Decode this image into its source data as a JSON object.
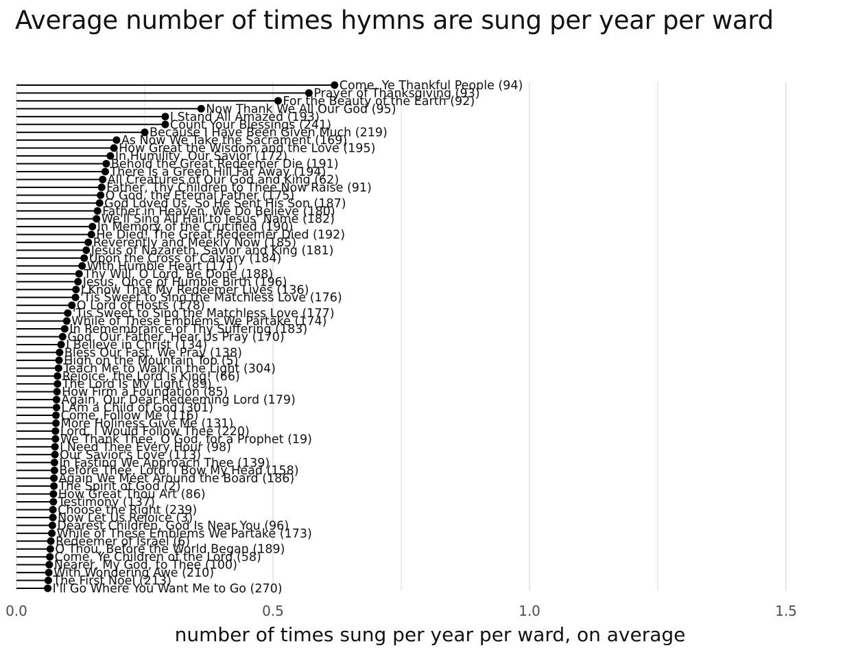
{
  "chart_data": {
    "type": "lollipop",
    "title": "Average number of times hymns are sung per year per ward",
    "xlabel": "number of times sung per year per ward, on average",
    "ylabel": "",
    "xlim": [
      0,
      1.6
    ],
    "xticks": [
      0.0,
      0.5,
      1.0,
      1.5
    ],
    "xtick_labels": [
      "0.0",
      "0.5",
      "1.0",
      "1.5"
    ],
    "grid": "vertical",
    "legend": "none",
    "colors": {
      "lollipop": "#000000",
      "grid": "#e5e5e5",
      "tick_text": "#4d4d4d"
    },
    "items": [
      {
        "label": "Come, Ye Thankful People (94)",
        "value": 0.62
      },
      {
        "label": "Prayer of Thanksgiving (93)",
        "value": 0.57
      },
      {
        "label": "For the Beauty of the Earth (92)",
        "value": 0.51
      },
      {
        "label": "Now Thank We All Our God (95)",
        "value": 0.36
      },
      {
        "label": "I Stand All Amazed (193)",
        "value": 0.29
      },
      {
        "label": "Count Your Blessings (241)",
        "value": 0.29
      },
      {
        "label": "Because I Have Been Given Much (219)",
        "value": 0.25
      },
      {
        "label": "As Now We Take the Sacrament (169)",
        "value": 0.195
      },
      {
        "label": "How Great the Wisdom and the Love (195)",
        "value": 0.19
      },
      {
        "label": "In Humility, Our Savior (172)",
        "value": 0.183
      },
      {
        "label": "Behold the Great Redeemer Die (191)",
        "value": 0.175
      },
      {
        "label": "There Is a Green Hill Far Away (194)",
        "value": 0.173
      },
      {
        "label": "All Creatures of Our God and King (62)",
        "value": 0.168
      },
      {
        "label": "Father, Thy Children to Thee Now Raise (91)",
        "value": 0.166
      },
      {
        "label": "O God, the Eternal Father (175)",
        "value": 0.164
      },
      {
        "label": "God Loved Us, So He Sent His Son (187)",
        "value": 0.162
      },
      {
        "label": "Father in Heaven, We Do Believe (180)",
        "value": 0.158
      },
      {
        "label": "We'll Sing All Hail to Jesus' Name (182)",
        "value": 0.156
      },
      {
        "label": "In Memory of the Crucified (190)",
        "value": 0.148
      },
      {
        "label": "He Died! The Great Redeemer Died (192)",
        "value": 0.146
      },
      {
        "label": "Reverently and Meekly Now (185)",
        "value": 0.14
      },
      {
        "label": "Jesus of Nazareth, Savior and King (181)",
        "value": 0.136
      },
      {
        "label": "Upon the Cross of Calvary (184)",
        "value": 0.132
      },
      {
        "label": "With Humble Heart (171)",
        "value": 0.128
      },
      {
        "label": "Thy Will, O Lord, Be Done (188)",
        "value": 0.122
      },
      {
        "label": "Jesus, Once of Humble Birth (196)",
        "value": 0.12
      },
      {
        "label": "I Know That My Redeemer Lives (136)",
        "value": 0.116
      },
      {
        "label": "'Tis Sweet to Sing the Matchless Love (176)",
        "value": 0.115
      },
      {
        "label": "O Lord of Hosts (178)",
        "value": 0.108
      },
      {
        "label": "'Tis Sweet to Sing the Matchless Love (177)",
        "value": 0.1
      },
      {
        "label": "While of These Emblems We Partake (174)",
        "value": 0.098
      },
      {
        "label": "In Remembrance of Thy Suffering (183)",
        "value": 0.094
      },
      {
        "label": "God, Our Father, Hear Us Pray (170)",
        "value": 0.09
      },
      {
        "label": "I Believe in Christ (134)",
        "value": 0.087
      },
      {
        "label": "Bless Our Fast, We Pray (138)",
        "value": 0.084
      },
      {
        "label": "High on the Mountain Top (5)",
        "value": 0.083
      },
      {
        "label": "Teach Me to Walk in the Light (304)",
        "value": 0.082
      },
      {
        "label": "Rejoice, the Lord Is King! (66)",
        "value": 0.08
      },
      {
        "label": "The Lord Is My Light (89)",
        "value": 0.08
      },
      {
        "label": "How Firm a Foundation (85)",
        "value": 0.079
      },
      {
        "label": "Again, Our Dear Redeeming Lord (179)",
        "value": 0.078
      },
      {
        "label": "I Am a Child of God (301)",
        "value": 0.078
      },
      {
        "label": "Come, Follow Me (116)",
        "value": 0.077
      },
      {
        "label": "More Holiness Give Me (131)",
        "value": 0.077
      },
      {
        "label": "Lord, I Would Follow Thee (220)",
        "value": 0.076
      },
      {
        "label": "We Thank Thee, O God, for a Prophet (19)",
        "value": 0.076
      },
      {
        "label": "I Need Thee Every Hour (98)",
        "value": 0.075
      },
      {
        "label": "Our Savior's Love (113)",
        "value": 0.075
      },
      {
        "label": "In Fasting We Approach Thee (139)",
        "value": 0.074
      },
      {
        "label": "Before Thee, Lord, I Bow My Head (158)",
        "value": 0.074
      },
      {
        "label": "Again We Meet Around the Board (186)",
        "value": 0.073
      },
      {
        "label": "The Spirit of God (2)",
        "value": 0.073
      },
      {
        "label": "How Great Thou Art (86)",
        "value": 0.072
      },
      {
        "label": "Testimony (137)",
        "value": 0.072
      },
      {
        "label": "Choose the Right (239)",
        "value": 0.071
      },
      {
        "label": "Now Let Us Rejoice (3)",
        "value": 0.071
      },
      {
        "label": "Dearest Children, God Is Near You (96)",
        "value": 0.07
      },
      {
        "label": "While of These Emblems We Partake (173)",
        "value": 0.069
      },
      {
        "label": "Redeemer of Israel (6)",
        "value": 0.067
      },
      {
        "label": "O Thou, Before the World Began (189)",
        "value": 0.066
      },
      {
        "label": "Come, Ye Children of the Lord (58)",
        "value": 0.065
      },
      {
        "label": "Nearer, My God, to Thee (100)",
        "value": 0.064
      },
      {
        "label": "With Wondering Awe (210)",
        "value": 0.063
      },
      {
        "label": "The First Noel (213)",
        "value": 0.062
      },
      {
        "label": "I'll Go Where You Want Me to Go (270)",
        "value": 0.061
      }
    ]
  }
}
